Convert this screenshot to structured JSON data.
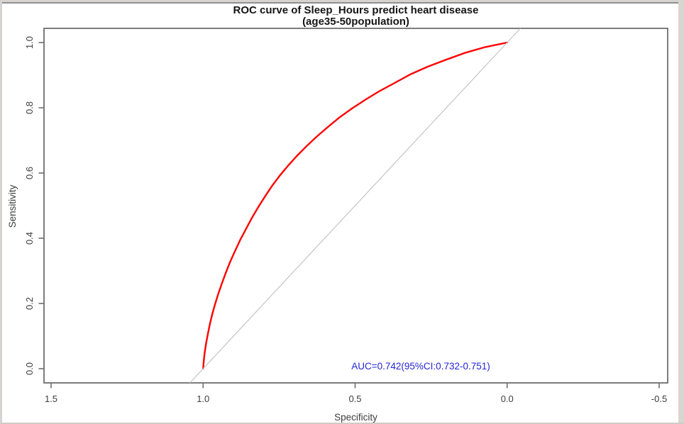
{
  "window": {
    "frame_light_color": "#d7d3ce",
    "frame_dark_color": "#8f8f8f",
    "frame_right_color": "#d9d5d0",
    "frame_bottom_color": "#cfccc7",
    "background": "#ffffff"
  },
  "chart_data": {
    "type": "line",
    "title": "ROC curve of Sleep_Hours predict heart disease",
    "subtitle": "(age35-50population)",
    "xlabel": "Specificity",
    "ylabel": "Sensitivity",
    "grid": false,
    "legend": "none",
    "box_color": "#6e6e6e",
    "tick_text_color": "#3d3d3d",
    "x_axis": {
      "range": [
        1.5,
        -0.5
      ],
      "reversed": true,
      "ticks": [
        1.5,
        1.0,
        0.5,
        0.0,
        -0.5
      ],
      "tick_labels": [
        "1.5",
        "1.0",
        "0.5",
        "0.0",
        "-0.5"
      ]
    },
    "y_axis": {
      "range": [
        0.0,
        1.0
      ],
      "ticks": [
        0.0,
        0.2,
        0.4,
        0.6,
        0.8,
        1.0
      ],
      "tick_labels": [
        "0.0",
        "0.2",
        "0.4",
        "0.6",
        "0.8",
        "1.0"
      ]
    },
    "annotation": {
      "label": "AUC=0.742(95%CI:0.732-0.751)",
      "auc": 0.742,
      "ci_low": 0.732,
      "ci_high": 0.751,
      "color": "#2525d6"
    },
    "series": [
      {
        "name": "roc-curve",
        "color": "#ff0000",
        "points": [
          [
            1.0,
            0.0
          ],
          [
            0.998,
            0.022
          ],
          [
            0.995,
            0.048
          ],
          [
            0.99,
            0.078
          ],
          [
            0.984,
            0.108
          ],
          [
            0.977,
            0.14
          ],
          [
            0.969,
            0.17
          ],
          [
            0.96,
            0.2
          ],
          [
            0.95,
            0.23
          ],
          [
            0.938,
            0.262
          ],
          [
            0.925,
            0.295
          ],
          [
            0.91,
            0.33
          ],
          [
            0.894,
            0.363
          ],
          [
            0.877,
            0.397
          ],
          [
            0.858,
            0.43
          ],
          [
            0.838,
            0.465
          ],
          [
            0.817,
            0.498
          ],
          [
            0.795,
            0.53
          ],
          [
            0.772,
            0.562
          ],
          [
            0.747,
            0.593
          ],
          [
            0.72,
            0.623
          ],
          [
            0.691,
            0.653
          ],
          [
            0.66,
            0.682
          ],
          [
            0.627,
            0.711
          ],
          [
            0.591,
            0.74
          ],
          [
            0.552,
            0.77
          ],
          [
            0.51,
            0.798
          ],
          [
            0.466,
            0.825
          ],
          [
            0.42,
            0.851
          ],
          [
            0.37,
            0.876
          ],
          [
            0.317,
            0.903
          ],
          [
            0.261,
            0.926
          ],
          [
            0.202,
            0.947
          ],
          [
            0.14,
            0.968
          ],
          [
            0.072,
            0.986
          ],
          [
            0.0,
            1.0
          ]
        ]
      },
      {
        "name": "reference-diagonal",
        "color": "#c4c4c4",
        "points": [
          [
            1.0,
            0.0
          ],
          [
            0.0,
            1.0
          ]
        ],
        "clip_to_box": true
      }
    ]
  }
}
